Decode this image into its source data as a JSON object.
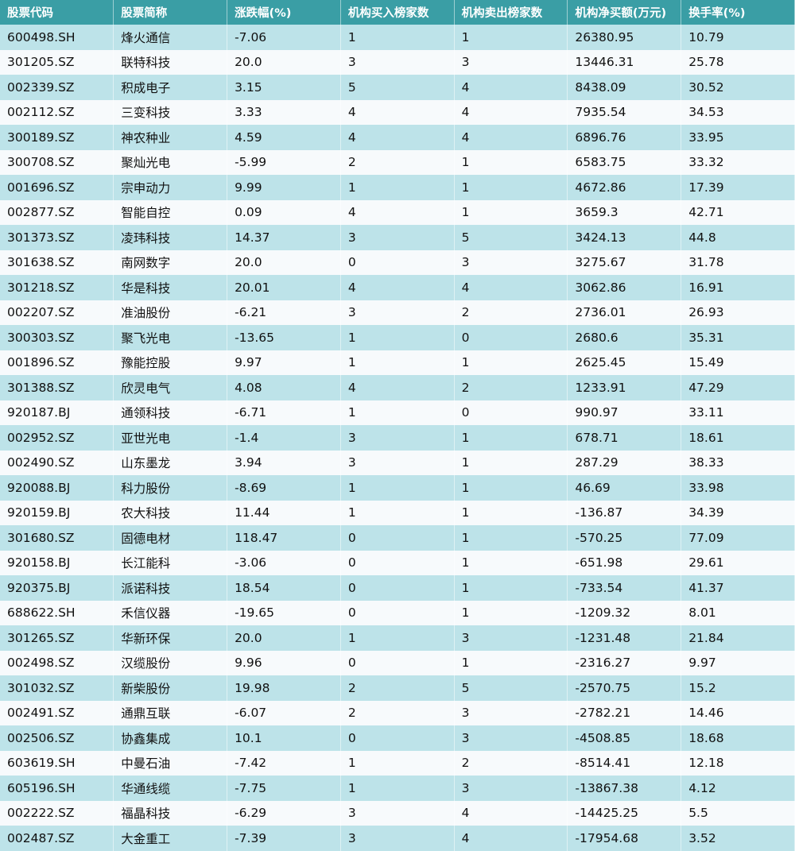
{
  "table": {
    "headers": [
      "股票代码",
      "股票简称",
      "涨跌幅(%)",
      "机构买入榜家数",
      "机构卖出榜家数",
      "机构净买额(万元)",
      "换手率(%)"
    ],
    "rows": [
      [
        "600498.SH",
        "烽火通信",
        "-7.06",
        "1",
        "1",
        "26380.95",
        "10.79"
      ],
      [
        "301205.SZ",
        "联特科技",
        "20.0",
        "3",
        "3",
        "13446.31",
        "25.78"
      ],
      [
        "002339.SZ",
        "积成电子",
        "3.15",
        "5",
        "4",
        "8438.09",
        "30.52"
      ],
      [
        "002112.SZ",
        "三变科技",
        "3.33",
        "4",
        "4",
        "7935.54",
        "34.53"
      ],
      [
        "300189.SZ",
        "神农种业",
        "4.59",
        "4",
        "4",
        "6896.76",
        "33.95"
      ],
      [
        "300708.SZ",
        "聚灿光电",
        "-5.99",
        "2",
        "1",
        "6583.75",
        "33.32"
      ],
      [
        "001696.SZ",
        "宗申动力",
        "9.99",
        "1",
        "1",
        "4672.86",
        "17.39"
      ],
      [
        "002877.SZ",
        "智能自控",
        "0.09",
        "4",
        "1",
        "3659.3",
        "42.71"
      ],
      [
        "301373.SZ",
        "凌玮科技",
        "14.37",
        "3",
        "5",
        "3424.13",
        "44.8"
      ],
      [
        "301638.SZ",
        "南网数字",
        "20.0",
        "0",
        "3",
        "3275.67",
        "31.78"
      ],
      [
        "301218.SZ",
        "华是科技",
        "20.01",
        "4",
        "4",
        "3062.86",
        "16.91"
      ],
      [
        "002207.SZ",
        "准油股份",
        "-6.21",
        "3",
        "2",
        "2736.01",
        "26.93"
      ],
      [
        "300303.SZ",
        "聚飞光电",
        "-13.65",
        "1",
        "0",
        "2680.6",
        "35.31"
      ],
      [
        "001896.SZ",
        "豫能控股",
        "9.97",
        "1",
        "1",
        "2625.45",
        "15.49"
      ],
      [
        "301388.SZ",
        "欣灵电气",
        "4.08",
        "4",
        "2",
        "1233.91",
        "47.29"
      ],
      [
        "920187.BJ",
        "通领科技",
        "-6.71",
        "1",
        "0",
        "990.97",
        "33.11"
      ],
      [
        "002952.SZ",
        "亚世光电",
        "-1.4",
        "3",
        "1",
        "678.71",
        "18.61"
      ],
      [
        "002490.SZ",
        "山东墨龙",
        "3.94",
        "3",
        "1",
        "287.29",
        "38.33"
      ],
      [
        "920088.BJ",
        "科力股份",
        "-8.69",
        "1",
        "1",
        "46.69",
        "33.98"
      ],
      [
        "920159.BJ",
        "农大科技",
        "11.44",
        "1",
        "1",
        "-136.87",
        "34.39"
      ],
      [
        "301680.SZ",
        "固德电材",
        "118.47",
        "0",
        "1",
        "-570.25",
        "77.09"
      ],
      [
        "920158.BJ",
        "长江能科",
        "-3.06",
        "0",
        "1",
        "-651.98",
        "29.61"
      ],
      [
        "920375.BJ",
        "派诺科技",
        "18.54",
        "0",
        "1",
        "-733.54",
        "41.37"
      ],
      [
        "688622.SH",
        "禾信仪器",
        "-19.65",
        "0",
        "1",
        "-1209.32",
        "8.01"
      ],
      [
        "301265.SZ",
        "华新环保",
        "20.0",
        "1",
        "3",
        "-1231.48",
        "21.84"
      ],
      [
        "002498.SZ",
        "汉缆股份",
        "9.96",
        "0",
        "1",
        "-2316.27",
        "9.97"
      ],
      [
        "301032.SZ",
        "新柴股份",
        "19.98",
        "2",
        "5",
        "-2570.75",
        "15.2"
      ],
      [
        "002491.SZ",
        "通鼎互联",
        "-6.07",
        "2",
        "3",
        "-2782.21",
        "14.46"
      ],
      [
        "002506.SZ",
        "协鑫集成",
        "10.1",
        "0",
        "3",
        "-4508.85",
        "18.68"
      ],
      [
        "603619.SH",
        "中曼石油",
        "-7.42",
        "1",
        "2",
        "-8514.41",
        "12.18"
      ],
      [
        "605196.SH",
        "华通线缆",
        "-7.75",
        "1",
        "3",
        "-13867.38",
        "4.12"
      ],
      [
        "002222.SZ",
        "福晶科技",
        "-6.29",
        "3",
        "4",
        "-14425.25",
        "5.5"
      ],
      [
        "002487.SZ",
        "大金重工",
        "-7.39",
        "3",
        "4",
        "-17954.68",
        "3.52"
      ]
    ]
  },
  "colors": {
    "header_bg": "#3a9ea5",
    "row_odd": "#bde3e9",
    "row_even": "#f7fafc"
  }
}
